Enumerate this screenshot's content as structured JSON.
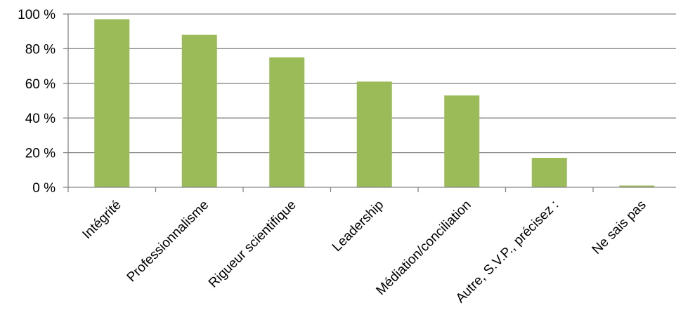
{
  "chart_data": {
    "type": "bar",
    "title": "",
    "xlabel": "",
    "ylabel": "",
    "categories": [
      "Intégrité",
      "Professionnalisme",
      "Rigueur scientifique",
      "Leadership",
      "Médiation/conciliation",
      "Autre, S.V.P., précisez :",
      "Ne sais pas"
    ],
    "values": [
      97,
      88,
      75,
      61,
      53,
      17,
      1
    ],
    "unit": "%",
    "ylim": [
      0,
      100
    ],
    "yticks": [
      0,
      20,
      40,
      60,
      80,
      100
    ],
    "ytick_labels": [
      "0 %",
      "20 %",
      "40 %",
      "60 %",
      "80 %",
      "100 %"
    ],
    "grid": true,
    "legend": "none",
    "bar_color": "#9BBB59",
    "grid_color": "#868686"
  }
}
